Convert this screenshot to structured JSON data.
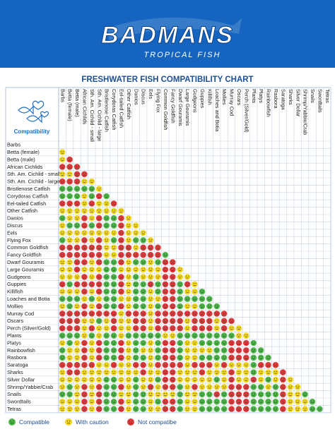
{
  "logo": {
    "brand": "BADMANS",
    "tagline": "TROPICAL FISH"
  },
  "title": "FRESHWATER FISH COMPATIBILITY CHART",
  "corner_label": "Compatibility",
  "legend": [
    {
      "label": "Compatible",
      "color": "#4db848"
    },
    {
      "label": "With caution",
      "color": "#f2d71c"
    },
    {
      "label": "Not compatibe",
      "color": "#e33b3b"
    }
  ],
  "fish": [
    "Barbs",
    "Betta (female)",
    "Betta (male)",
    "African Cichlids",
    "Sth. Am. Cichlid - small",
    "Sth. Am. Cichlid - large",
    "Bristlenose Catfish",
    "Corydoras Catfish",
    "Eel-tailed Catfish",
    "Other Catfish",
    "Danios",
    "Discus",
    "Eels",
    "Flying Fox",
    "Common Goldfish",
    "Fancy Goldfish",
    "Dwarf Gouramis",
    "Large Gouramis",
    "Gudgeons",
    "Guppies",
    "Killifish",
    "Loaches and Botia",
    "Mollies",
    "Murray Cod",
    "Oscars",
    "Perch (Silver/Gold)",
    "Plants",
    "Platys",
    "Rainbowfish",
    "Rasbora",
    "Saratoga",
    "Sharks",
    "Silver Dollar",
    "Shrimp/Yabbie/Crab",
    "Snails",
    "Swordtails",
    "Tetras"
  ],
  "matrix": [
    [
      1
    ],
    [
      1,
      2
    ],
    [
      2,
      2,
      2
    ],
    [
      1,
      1,
      2,
      2
    ],
    [
      2,
      2,
      2,
      1,
      1
    ],
    [
      0,
      0,
      0,
      0,
      0,
      1
    ],
    [
      0,
      0,
      0,
      1,
      0,
      2,
      0
    ],
    [
      2,
      2,
      2,
      1,
      2,
      1,
      1,
      2
    ],
    [
      1,
      1,
      1,
      1,
      1,
      1,
      1,
      1,
      1
    ],
    [
      0,
      1,
      1,
      2,
      1,
      2,
      0,
      0,
      2,
      1
    ],
    [
      1,
      0,
      0,
      2,
      0,
      2,
      0,
      0,
      2,
      1,
      1
    ],
    [
      1,
      1,
      1,
      1,
      1,
      1,
      1,
      1,
      2,
      1,
      1,
      1
    ],
    [
      0,
      1,
      1,
      2,
      1,
      2,
      1,
      0,
      2,
      1,
      0,
      0,
      1
    ],
    [
      2,
      2,
      2,
      2,
      2,
      2,
      1,
      1,
      2,
      2,
      1,
      2,
      2,
      2
    ],
    [
      2,
      2,
      2,
      2,
      2,
      2,
      1,
      1,
      2,
      2,
      2,
      2,
      2,
      2,
      0
    ],
    [
      1,
      1,
      2,
      2,
      1,
      2,
      0,
      0,
      2,
      1,
      0,
      0,
      1,
      0,
      2,
      2
    ],
    [
      1,
      1,
      2,
      1,
      1,
      1,
      0,
      0,
      1,
      1,
      1,
      1,
      1,
      1,
      2,
      2,
      1
    ],
    [
      1,
      1,
      1,
      2,
      1,
      2,
      0,
      0,
      2,
      1,
      0,
      1,
      1,
      1,
      2,
      2,
      1,
      1
    ],
    [
      2,
      0,
      2,
      2,
      2,
      2,
      0,
      0,
      2,
      1,
      0,
      0,
      2,
      0,
      2,
      2,
      0,
      2,
      1
    ],
    [
      1,
      1,
      1,
      2,
      1,
      2,
      0,
      0,
      2,
      1,
      0,
      0,
      1,
      0,
      2,
      2,
      0,
      1,
      1,
      0
    ],
    [
      0,
      0,
      0,
      1,
      0,
      1,
      0,
      0,
      1,
      1,
      0,
      0,
      1,
      1,
      2,
      2,
      0,
      0,
      0,
      0,
      0
    ],
    [
      1,
      0,
      1,
      2,
      1,
      2,
      0,
      0,
      2,
      1,
      0,
      0,
      1,
      0,
      2,
      2,
      0,
      1,
      1,
      0,
      0,
      0
    ],
    [
      2,
      2,
      2,
      2,
      2,
      2,
      2,
      2,
      1,
      2,
      2,
      2,
      1,
      2,
      2,
      2,
      2,
      2,
      2,
      2,
      2,
      2,
      2
    ],
    [
      2,
      2,
      2,
      1,
      1,
      0,
      1,
      2,
      1,
      1,
      2,
      2,
      1,
      2,
      2,
      2,
      2,
      1,
      2,
      2,
      2,
      1,
      2,
      2
    ],
    [
      2,
      2,
      2,
      1,
      2,
      1,
      1,
      2,
      1,
      1,
      2,
      2,
      1,
      2,
      2,
      2,
      2,
      1,
      2,
      2,
      2,
      1,
      2,
      1,
      1
    ],
    [
      0,
      0,
      0,
      1,
      0,
      1,
      0,
      0,
      1,
      0,
      0,
      0,
      0,
      0,
      1,
      1,
      0,
      0,
      0,
      0,
      0,
      0,
      0,
      0,
      1,
      1
    ],
    [
      1,
      0,
      1,
      2,
      1,
      2,
      0,
      0,
      2,
      1,
      0,
      0,
      1,
      0,
      2,
      2,
      0,
      1,
      1,
      0,
      0,
      0,
      0,
      2,
      2,
      2,
      0
    ],
    [
      0,
      1,
      1,
      2,
      1,
      2,
      0,
      0,
      2,
      1,
      0,
      1,
      1,
      0,
      2,
      2,
      0,
      1,
      1,
      1,
      1,
      0,
      0,
      2,
      2,
      2,
      0,
      0
    ],
    [
      0,
      1,
      1,
      2,
      1,
      2,
      0,
      0,
      2,
      1,
      0,
      0,
      1,
      0,
      2,
      2,
      0,
      1,
      1,
      0,
      0,
      0,
      0,
      2,
      2,
      2,
      0,
      0,
      0
    ],
    [
      2,
      2,
      2,
      2,
      2,
      1,
      1,
      2,
      1,
      1,
      2,
      2,
      1,
      2,
      2,
      2,
      2,
      1,
      2,
      2,
      2,
      1,
      2,
      1,
      1,
      1,
      0,
      2,
      2,
      2
    ],
    [
      1,
      2,
      2,
      1,
      1,
      1,
      1,
      1,
      1,
      1,
      1,
      2,
      1,
      1,
      2,
      2,
      1,
      1,
      1,
      2,
      1,
      1,
      1,
      2,
      1,
      1,
      0,
      1,
      1,
      1,
      2
    ],
    [
      1,
      1,
      1,
      1,
      1,
      1,
      0,
      0,
      1,
      1,
      0,
      1,
      1,
      0,
      2,
      2,
      1,
      1,
      1,
      1,
      1,
      0,
      1,
      2,
      1,
      1,
      2,
      1,
      0,
      1,
      2,
      1
    ],
    [
      1,
      0,
      1,
      2,
      1,
      2,
      0,
      0,
      2,
      1,
      0,
      1,
      2,
      1,
      2,
      2,
      0,
      1,
      2,
      1,
      1,
      1,
      1,
      2,
      2,
      2,
      0,
      0,
      1,
      0,
      2,
      1,
      1
    ],
    [
      0,
      0,
      1,
      2,
      1,
      2,
      0,
      0,
      1,
      1,
      0,
      0,
      1,
      1,
      1,
      1,
      0,
      1,
      1,
      0,
      0,
      2,
      0,
      2,
      2,
      2,
      0,
      0,
      0,
      0,
      2,
      1,
      1,
      0
    ],
    [
      1,
      1,
      1,
      2,
      1,
      2,
      0,
      0,
      2,
      1,
      0,
      0,
      1,
      0,
      2,
      2,
      0,
      1,
      1,
      0,
      0,
      0,
      0,
      2,
      2,
      2,
      0,
      0,
      0,
      0,
      2,
      1,
      1,
      1,
      0
    ],
    [
      1,
      1,
      1,
      2,
      1,
      2,
      0,
      0,
      2,
      1,
      0,
      0,
      1,
      1,
      2,
      2,
      0,
      1,
      1,
      0,
      0,
      0,
      0,
      2,
      2,
      2,
      0,
      0,
      0,
      0,
      2,
      1,
      1,
      1,
      0,
      0
    ]
  ]
}
